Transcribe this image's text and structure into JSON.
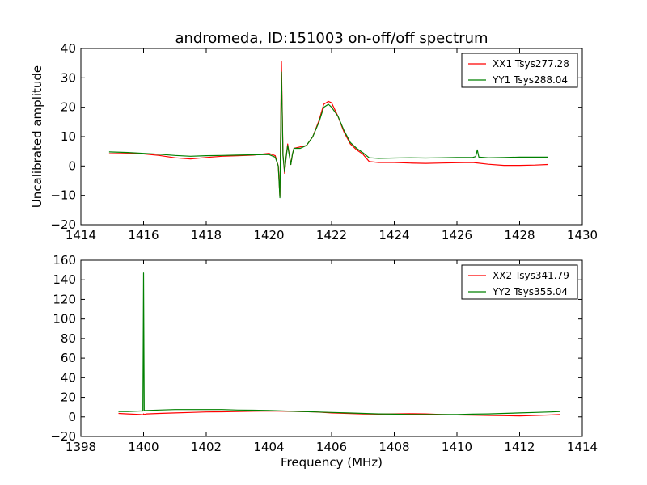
{
  "figure": {
    "title": "andromeda, ID:151003 on-off/off spectrum",
    "xlabel": "Frequency (MHz)",
    "ylabel": "Uncalibrated amplitude"
  },
  "chart_data": [
    {
      "type": "line",
      "title": "andromeda, ID:151003 on-off/off spectrum",
      "xlabel": "",
      "ylabel": "Uncalibrated amplitude",
      "xlim": [
        1414,
        1430
      ],
      "ylim": [
        -20,
        40
      ],
      "xticks": [
        "1414",
        "1416",
        "1418",
        "1420",
        "1422",
        "1424",
        "1426",
        "1428",
        "1430"
      ],
      "yticks": [
        "−20",
        "−10",
        "0",
        "10",
        "20",
        "30",
        "40"
      ],
      "legend_position": "top-right",
      "grid": false,
      "series": [
        {
          "name": "XX1 Tsys277.28",
          "color": "#ff0000",
          "x": [
            1414.9,
            1415.5,
            1416.0,
            1416.5,
            1417.0,
            1417.5,
            1418.0,
            1418.5,
            1419.0,
            1419.5,
            1420.0,
            1420.2,
            1420.3,
            1420.35,
            1420.4,
            1420.45,
            1420.5,
            1420.55,
            1420.6,
            1420.7,
            1420.75,
            1420.8,
            1421.0,
            1421.2,
            1421.4,
            1421.6,
            1421.75,
            1421.9,
            1422.0,
            1422.2,
            1422.4,
            1422.6,
            1422.8,
            1423.0,
            1423.2,
            1423.5,
            1424.0,
            1424.5,
            1425.0,
            1425.5,
            1426.0,
            1426.5,
            1427.0,
            1427.5,
            1428.0,
            1428.5,
            1428.9
          ],
          "y": [
            4.2,
            4.3,
            4.1,
            3.6,
            2.8,
            2.4,
            2.9,
            3.3,
            3.5,
            3.7,
            4.3,
            3.5,
            0.0,
            -10.5,
            35.5,
            4.0,
            -2.5,
            3.0,
            7.5,
            0.5,
            4.0,
            6.0,
            6.5,
            7.0,
            10.0,
            15.5,
            21.0,
            22.0,
            21.5,
            17.0,
            11.5,
            7.5,
            5.5,
            4.0,
            1.5,
            1.2,
            1.2,
            1.0,
            0.9,
            1.0,
            1.1,
            1.2,
            0.6,
            0.2,
            0.2,
            0.3,
            0.5
          ]
        },
        {
          "name": "YY1 Tsys288.04",
          "color": "#008000",
          "x": [
            1414.9,
            1415.5,
            1416.0,
            1416.5,
            1417.0,
            1417.5,
            1418.0,
            1418.5,
            1419.0,
            1419.5,
            1420.0,
            1420.2,
            1420.3,
            1420.35,
            1420.4,
            1420.45,
            1420.5,
            1420.55,
            1420.6,
            1420.7,
            1420.75,
            1420.8,
            1421.0,
            1421.2,
            1421.4,
            1421.6,
            1421.75,
            1421.9,
            1422.0,
            1422.2,
            1422.4,
            1422.6,
            1422.8,
            1423.0,
            1423.2,
            1423.5,
            1424.0,
            1424.5,
            1425.0,
            1425.5,
            1426.0,
            1426.5,
            1426.6,
            1426.65,
            1426.7,
            1427.0,
            1427.5,
            1428.0,
            1428.5,
            1428.9
          ],
          "y": [
            4.8,
            4.6,
            4.3,
            4.0,
            3.6,
            3.3,
            3.5,
            3.6,
            3.7,
            3.8,
            3.9,
            3.0,
            0.0,
            -10.8,
            32.0,
            3.5,
            -2.0,
            3.0,
            7.0,
            0.5,
            4.0,
            6.0,
            6.0,
            7.0,
            10.0,
            15.0,
            20.0,
            21.0,
            20.0,
            17.0,
            12.0,
            8.0,
            6.0,
            4.5,
            2.8,
            2.6,
            2.7,
            2.8,
            2.7,
            2.8,
            2.9,
            2.9,
            3.2,
            5.5,
            3.0,
            2.8,
            2.9,
            3.0,
            3.0,
            3.0
          ]
        }
      ]
    },
    {
      "type": "line",
      "title": "",
      "xlabel": "Frequency (MHz)",
      "ylabel": "",
      "xlim": [
        1398,
        1414
      ],
      "ylim": [
        -20,
        160
      ],
      "xticks": [
        "1398",
        "1400",
        "1402",
        "1404",
        "1406",
        "1408",
        "1410",
        "1412",
        "1414"
      ],
      "yticks": [
        "−20",
        "0",
        "20",
        "40",
        "60",
        "80",
        "100",
        "120",
        "140",
        "160"
      ],
      "legend_position": "top-right",
      "grid": false,
      "series": [
        {
          "name": "XX2 Tsys341.79",
          "color": "#ff0000",
          "x": [
            1399.2,
            1399.5,
            1399.9,
            1399.98,
            1400.0,
            1400.02,
            1400.1,
            1400.5,
            1401.0,
            1401.5,
            1402.0,
            1402.5,
            1403.0,
            1403.5,
            1404.0,
            1404.5,
            1405.0,
            1405.5,
            1406.0,
            1406.5,
            1407.0,
            1407.5,
            1408.0,
            1408.5,
            1409.0,
            1409.5,
            1410.0,
            1410.5,
            1411.0,
            1411.5,
            1412.0,
            1412.5,
            1413.0,
            1413.3
          ],
          "y": [
            3.5,
            3.0,
            2.5,
            2.0,
            3.0,
            2.5,
            3.0,
            3.5,
            4.0,
            4.5,
            5.0,
            5.2,
            5.5,
            5.8,
            6.0,
            5.8,
            5.5,
            5.0,
            4.0,
            3.5,
            3.0,
            2.8,
            3.0,
            3.2,
            3.0,
            2.5,
            2.0,
            1.8,
            1.5,
            1.2,
            1.0,
            1.5,
            2.0,
            2.5
          ]
        },
        {
          "name": "YY2 Tsys355.04",
          "color": "#008000",
          "x": [
            1399.2,
            1399.5,
            1399.9,
            1399.98,
            1400.0,
            1400.02,
            1400.1,
            1400.5,
            1401.0,
            1401.5,
            1402.0,
            1402.5,
            1403.0,
            1403.5,
            1404.0,
            1404.5,
            1405.0,
            1405.5,
            1406.0,
            1406.5,
            1407.0,
            1407.5,
            1408.0,
            1408.5,
            1409.0,
            1409.5,
            1410.0,
            1410.5,
            1411.0,
            1411.5,
            1412.0,
            1412.5,
            1413.0,
            1413.3
          ],
          "y": [
            5.5,
            5.5,
            6.0,
            6.0,
            147.0,
            6.5,
            6.5,
            7.0,
            7.5,
            7.5,
            7.5,
            7.5,
            7.0,
            6.8,
            6.5,
            6.0,
            5.5,
            5.0,
            4.5,
            4.0,
            3.5,
            3.0,
            2.8,
            2.5,
            2.5,
            2.5,
            2.5,
            2.8,
            3.0,
            3.5,
            4.0,
            4.5,
            5.0,
            5.5
          ]
        }
      ]
    }
  ]
}
